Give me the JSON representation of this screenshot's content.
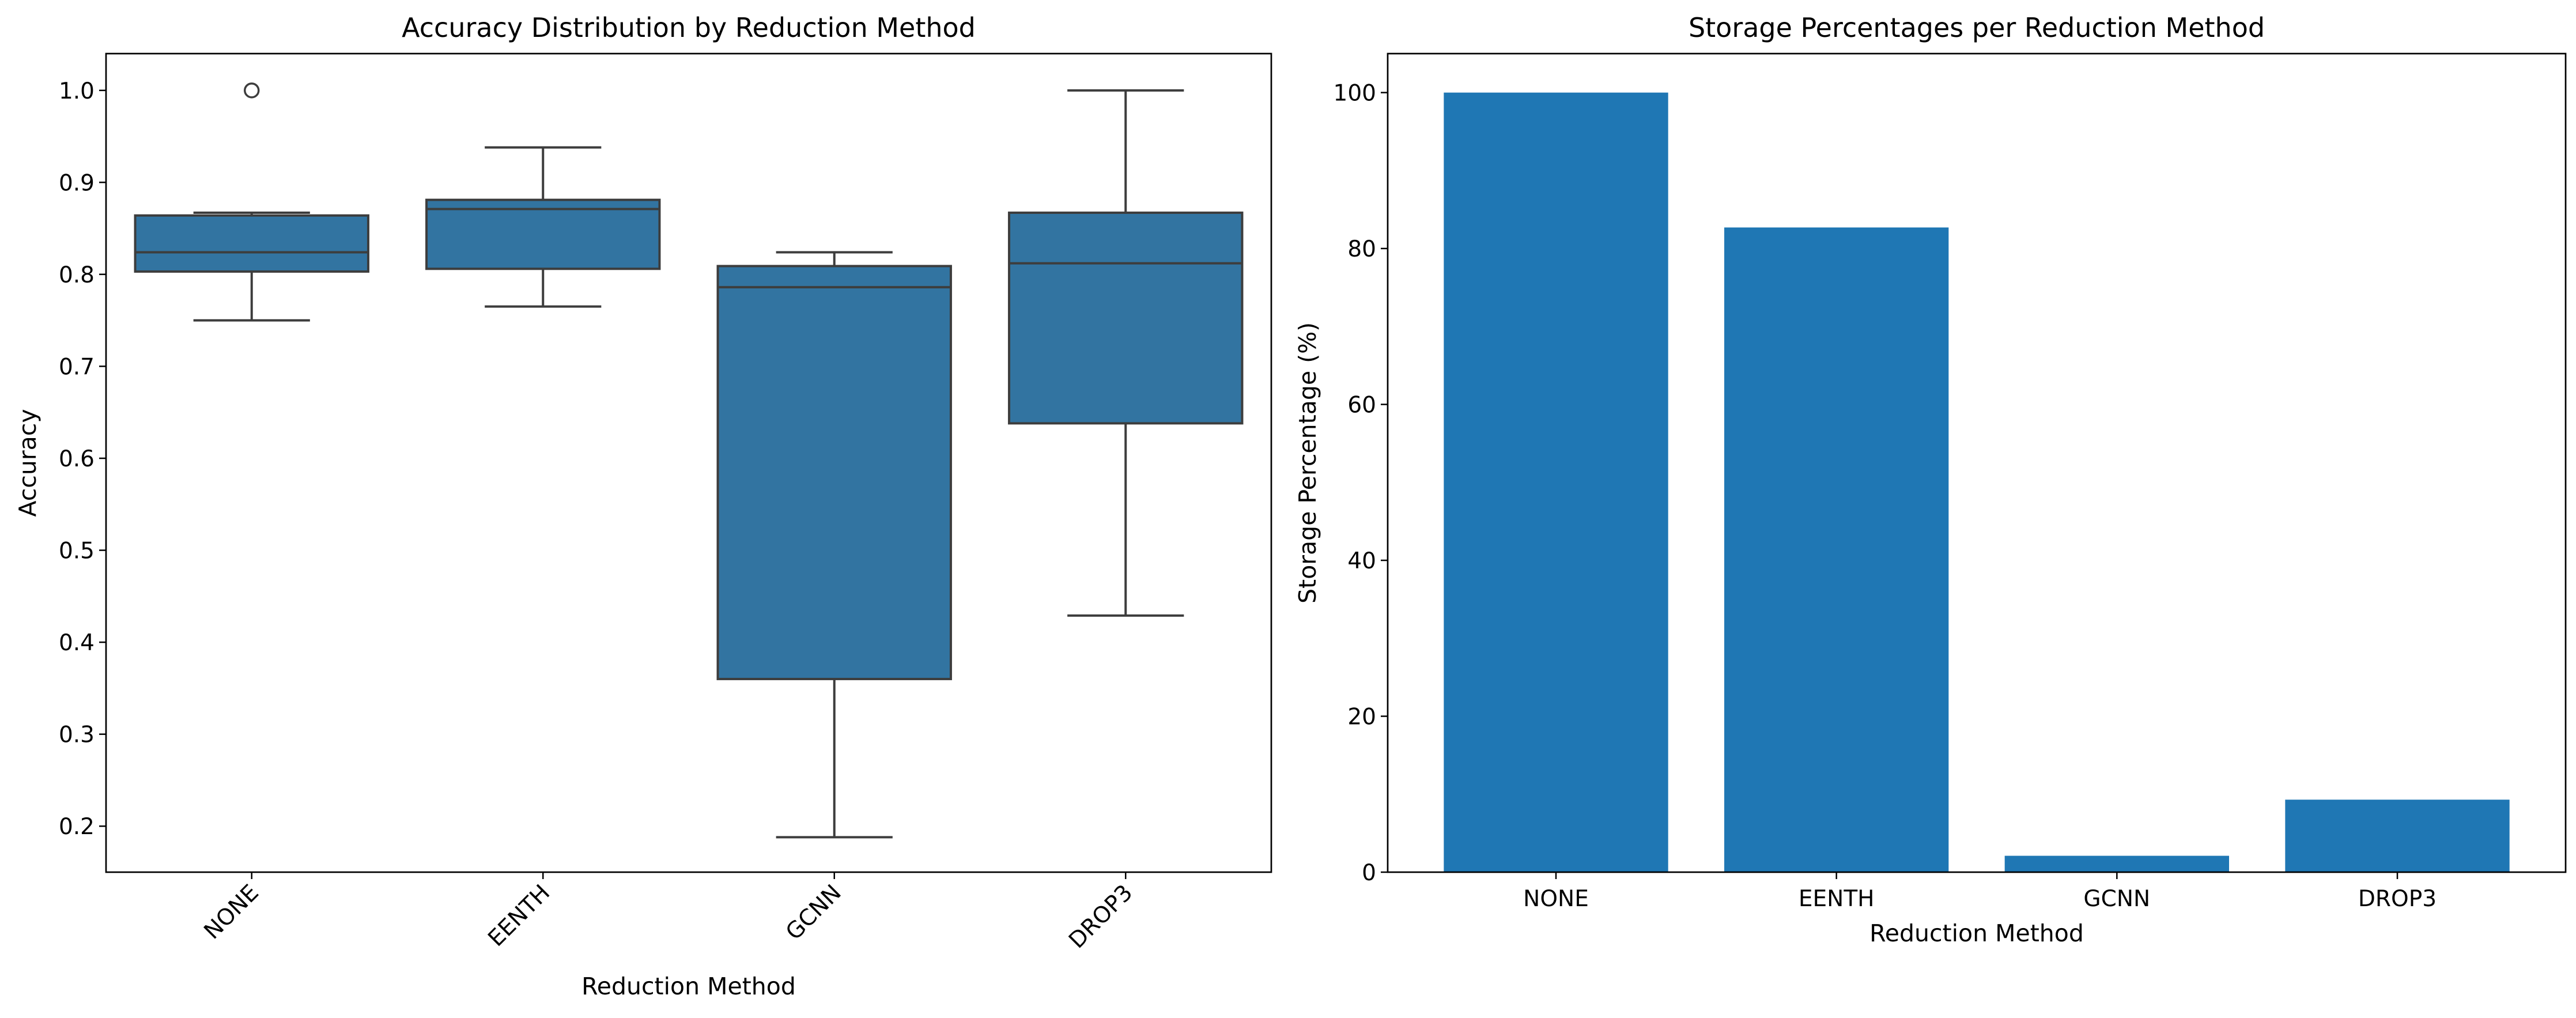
{
  "chart_data": [
    {
      "type": "box",
      "title": "Accuracy Distribution by Reduction Method",
      "xlabel": "Reduction Method",
      "ylabel": "Accuracy",
      "categories": [
        "NONE",
        "EENTH",
        "GCNN",
        "DROP3"
      ],
      "ylim": [
        0.15,
        1.04
      ],
      "yticks": [
        "0.2",
        "0.3",
        "0.4",
        "0.5",
        "0.6",
        "0.7",
        "0.8",
        "0.9",
        "1.0"
      ],
      "grid": false,
      "x_tick_rotation": 45,
      "color": "#3274a1",
      "boxes": [
        {
          "whislo": 0.75,
          "q1": 0.803,
          "med": 0.824,
          "q3": 0.864,
          "whishi": 0.867,
          "fliers": [
            1.0
          ]
        },
        {
          "whislo": 0.765,
          "q1": 0.806,
          "med": 0.871,
          "q3": 0.881,
          "whishi": 0.938,
          "fliers": []
        },
        {
          "whislo": 0.188,
          "q1": 0.36,
          "med": 0.786,
          "q3": 0.809,
          "whishi": 0.824,
          "fliers": []
        },
        {
          "whislo": 0.429,
          "q1": 0.638,
          "med": 0.812,
          "q3": 0.867,
          "whishi": 1.0,
          "fliers": []
        }
      ]
    },
    {
      "type": "bar",
      "title": "Storage Percentages per Reduction Method",
      "xlabel": "Reduction Method",
      "ylabel": "Storage Percentage (%)",
      "categories": [
        "NONE",
        "EENTH",
        "GCNN",
        "DROP3"
      ],
      "values": [
        100.0,
        82.7,
        2.1,
        9.3
      ],
      "ylim": [
        0,
        105
      ],
      "yticks": [
        "0",
        "20",
        "40",
        "60",
        "80",
        "100"
      ],
      "grid": false,
      "color": "#1f77b4"
    }
  ]
}
